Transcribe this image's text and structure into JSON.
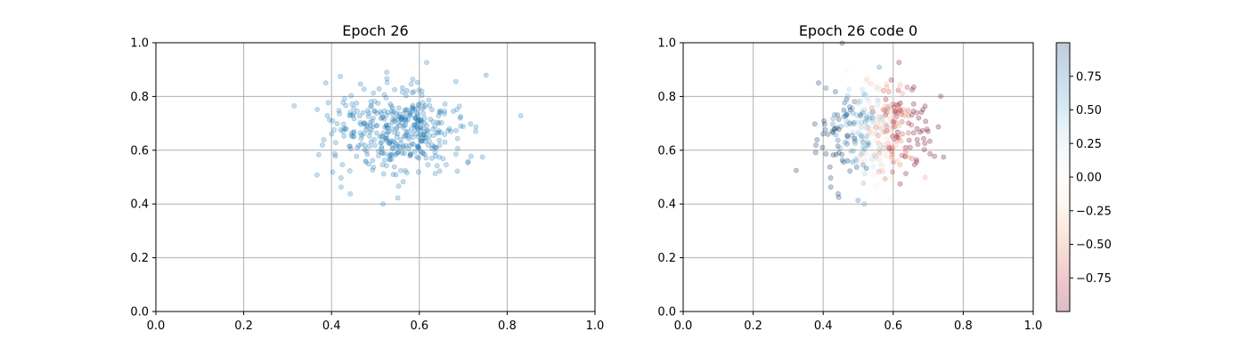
{
  "chart_data": [
    {
      "type": "scatter",
      "title": "Epoch 26",
      "xlim": [
        0,
        1
      ],
      "ylim": [
        0,
        1
      ],
      "xticks": [
        "0.0",
        "0.2",
        "0.4",
        "0.6",
        "0.8",
        "1.0"
      ],
      "yticks": [
        "0.0",
        "0.2",
        "0.4",
        "0.6",
        "0.8",
        "1.0"
      ],
      "grid": true,
      "color": "#1f77b4",
      "opacity": 0.25,
      "sample": {
        "n": 420,
        "x_center": 0.55,
        "x_spread": 0.075,
        "y_center": 0.68,
        "y_spread": 0.085,
        "seed": 26
      }
    },
    {
      "type": "scatter",
      "title": "Epoch 26 code 0",
      "xlim": [
        0,
        1
      ],
      "ylim": [
        0,
        1
      ],
      "xticks": [
        "0.0",
        "0.2",
        "0.4",
        "0.6",
        "0.8",
        "1.0"
      ],
      "yticks": [
        "0.0",
        "0.2",
        "0.4",
        "0.6",
        "0.8",
        "1.0"
      ],
      "grid": true,
      "colormap": "RdBu",
      "opacity": 0.25,
      "colorbar": {
        "range": [
          -1,
          1
        ],
        "ticks": [
          0.75,
          0.5,
          0.25,
          0.0,
          -0.25,
          -0.5,
          -0.75
        ],
        "tick_labels": [
          "0.75",
          "0.50",
          "0.25",
          "0.00",
          "−0.25",
          "−0.50",
          "−0.75"
        ]
      },
      "sample": {
        "n": 420,
        "x_center": 0.55,
        "x_spread": 0.075,
        "y_center": 0.68,
        "y_spread": 0.085,
        "seed": 26
      }
    }
  ]
}
